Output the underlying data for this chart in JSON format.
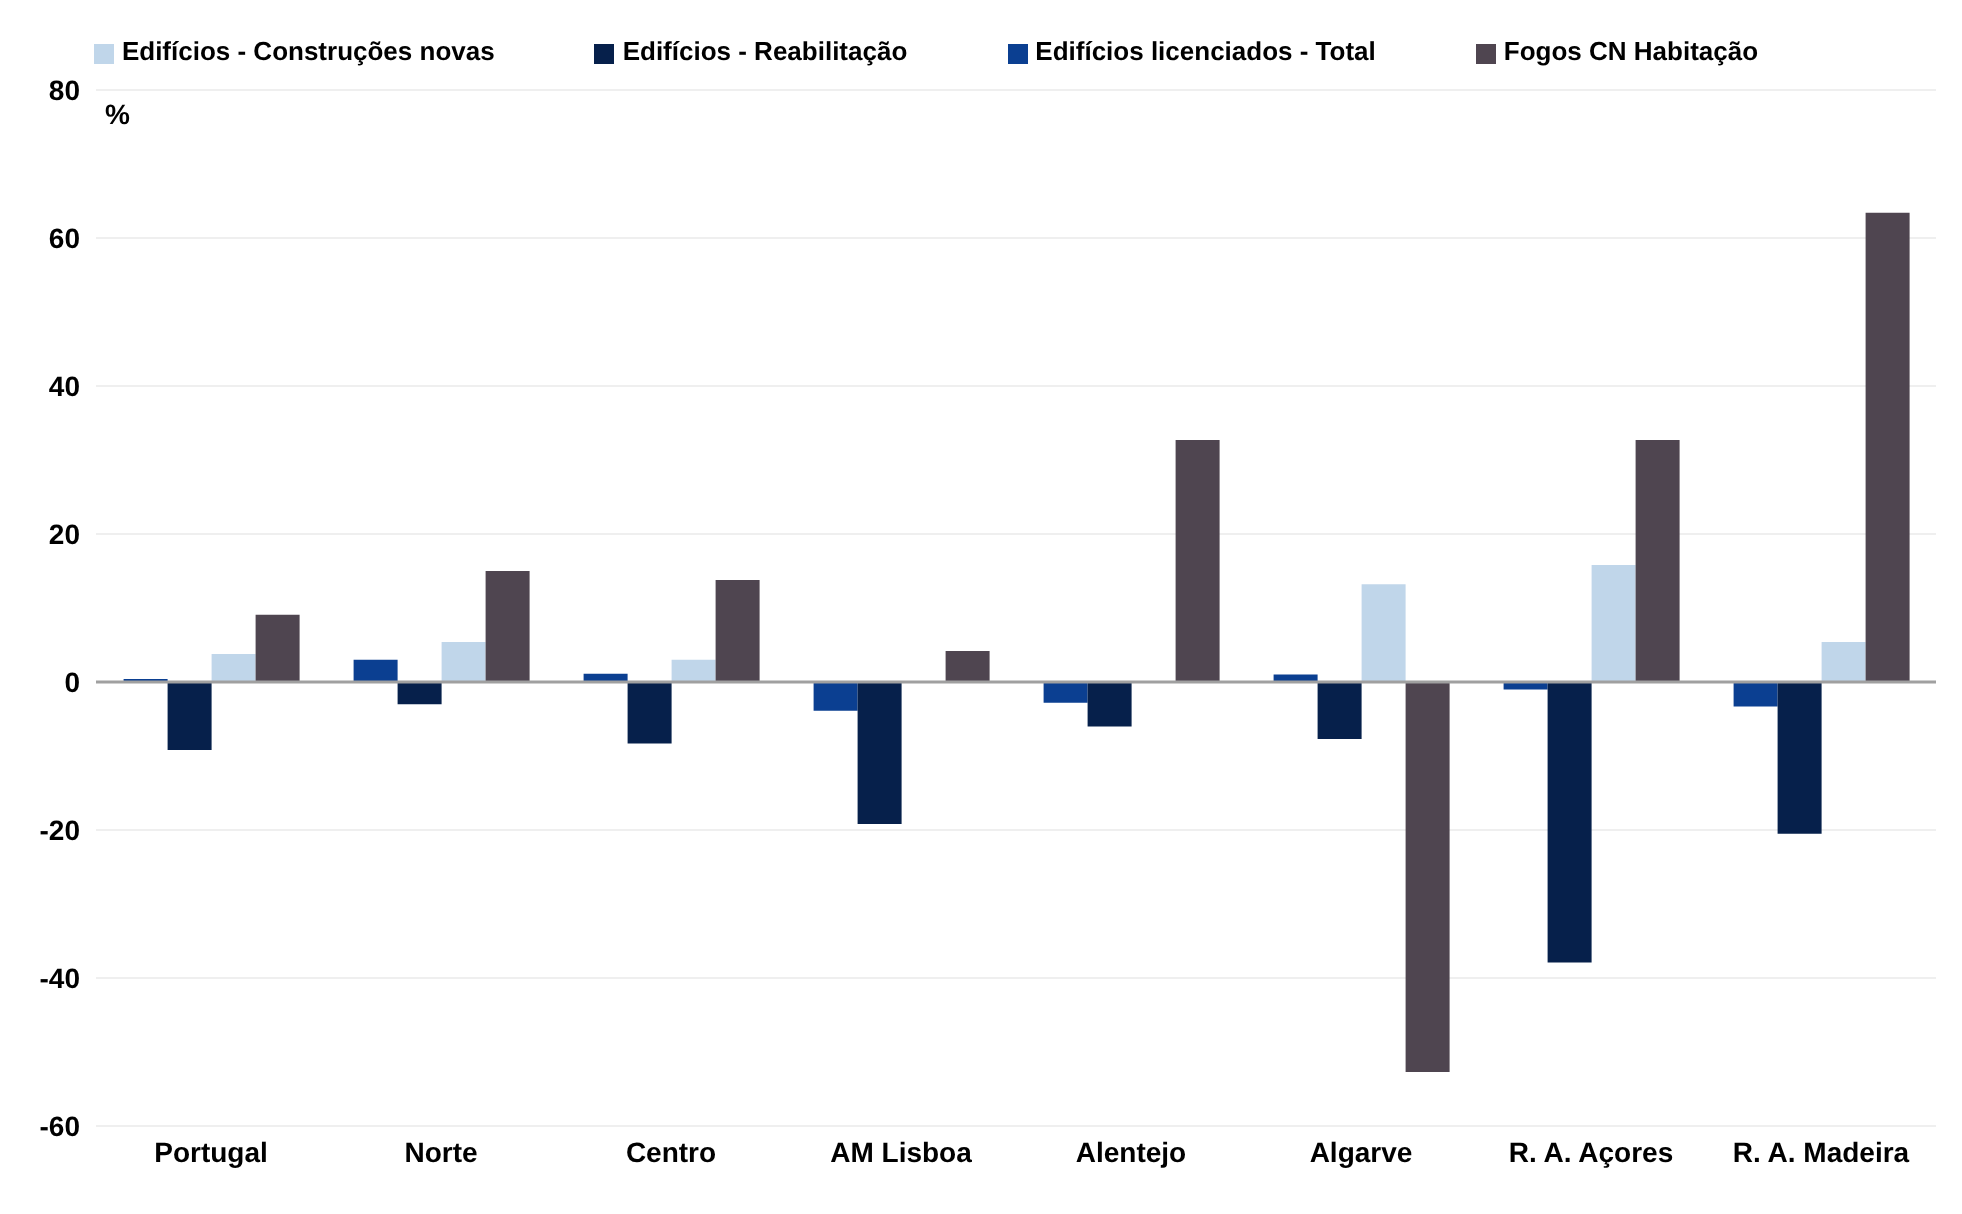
{
  "chart_data": {
    "type": "bar",
    "ylabel": "%",
    "categories": [
      "Portugal",
      "Norte",
      "Centro",
      "AM Lisboa",
      "Alentejo",
      "Algarve",
      "R. A. Açores",
      "R. A. Madeira"
    ],
    "series": [
      {
        "name": "Edifícios licenciados - Total",
        "color": "#0b3f91",
        "values": [
          0.4,
          3.0,
          1.1,
          -3.9,
          -2.8,
          1.0,
          -1.0,
          -3.3
        ]
      },
      {
        "name": "Edifícios - Reabilitação",
        "color": "#06204b",
        "values": [
          -9.2,
          -3.0,
          -8.3,
          -19.2,
          -6.0,
          -7.7,
          -37.9,
          -20.5
        ]
      },
      {
        "name": "Edifícios - Construções novas",
        "color": "#c0d6ea",
        "values": [
          3.8,
          5.4,
          3.0,
          0,
          0,
          13.2,
          15.8,
          5.4
        ]
      },
      {
        "name": "Fogos CN Habitação",
        "color": "#4f4550",
        "values": [
          9.1,
          15.0,
          13.8,
          4.2,
          32.7,
          -52.7,
          32.7,
          63.4
        ]
      }
    ],
    "ylim": [
      -60,
      80
    ],
    "yticks": [
      -60,
      -40,
      -20,
      0,
      20,
      40,
      60,
      80
    ],
    "grid": "y",
    "legend": "top"
  }
}
